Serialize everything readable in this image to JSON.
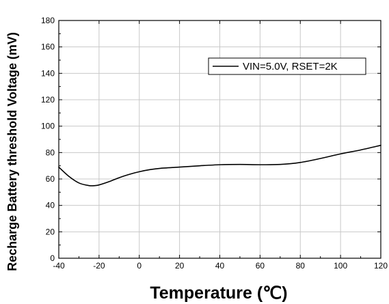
{
  "chart_data": {
    "type": "line",
    "xlabel": "Temperature (℃)",
    "ylabel": "Recharge Battery threshold Voltage (mV)",
    "xlim": [
      -40,
      120
    ],
    "ylim": [
      0,
      180
    ],
    "xticks": [
      -40,
      -20,
      0,
      20,
      40,
      60,
      80,
      100,
      120
    ],
    "yticks": [
      0,
      20,
      40,
      60,
      80,
      100,
      120,
      140,
      160,
      180
    ],
    "xtick_labels": [
      "-40",
      "-20",
      "0",
      "20",
      "40",
      "60",
      "80",
      "100",
      "120"
    ],
    "ytick_labels": [
      "0",
      "20",
      "40",
      "60",
      "80",
      "100",
      "120",
      "140",
      "160",
      "180"
    ],
    "grid": true,
    "legend_position": "top-right",
    "series": [
      {
        "name": "VIN=5.0V, RSET=2K",
        "color": "#000000",
        "x": [
          -40,
          -35,
          -30,
          -25,
          -22,
          -20,
          -15,
          -10,
          -5,
          0,
          5,
          10,
          20,
          30,
          40,
          50,
          60,
          70,
          80,
          90,
          100,
          110,
          120
        ],
        "y": [
          69,
          62,
          57,
          55,
          55,
          55.5,
          58,
          61,
          63.5,
          65.5,
          67,
          68,
          69,
          70,
          70.8,
          71,
          70.8,
          71,
          72.5,
          75.5,
          79,
          82,
          85.5
        ]
      }
    ]
  }
}
